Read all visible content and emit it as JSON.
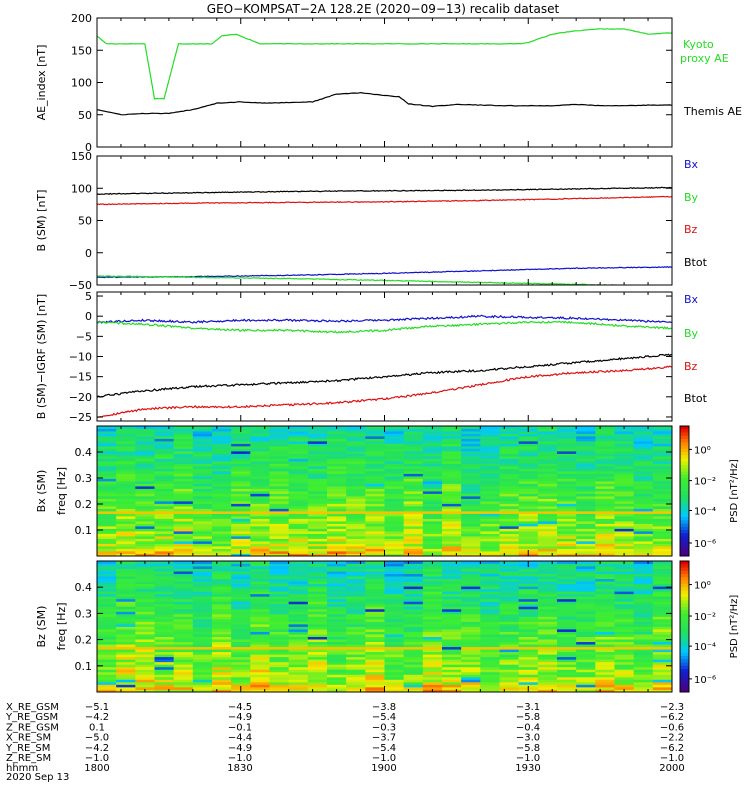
{
  "title": "GEO−KOMPSAT−2A 128.2E (2020−09−13) recalib dataset",
  "colors": {
    "green": "#22dd22",
    "black": "#000000",
    "blue": "#1111cc",
    "red": "#dd1111"
  },
  "chart_data": [
    {
      "type": "line",
      "ylabel": "AE_index [nT]",
      "ylim": [
        0,
        200
      ],
      "yticks": [
        "0",
        "50",
        "100",
        "150",
        "200"
      ],
      "series": [
        {
          "name": "Kyoto proxy AE",
          "color": "#22dd22",
          "x": [
            0,
            2,
            4,
            10,
            12,
            14,
            17,
            19,
            24,
            26,
            29,
            34,
            40,
            50,
            60,
            65,
            70,
            80,
            88,
            90,
            95,
            100,
            105,
            110,
            115,
            120
          ],
          "values": [
            172,
            160,
            160,
            160,
            75,
            75,
            160,
            160,
            160,
            172,
            175,
            160,
            160,
            160,
            160,
            160,
            160,
            160,
            160,
            162,
            175,
            180,
            183,
            183,
            175,
            177
          ]
        },
        {
          "name": "Themis AE",
          "color": "#000000",
          "x": [
            0,
            5,
            10,
            15,
            20,
            25,
            30,
            35,
            40,
            45,
            50,
            55,
            60,
            63,
            65,
            70,
            75,
            80,
            85,
            90,
            95,
            100,
            105,
            110,
            115,
            120
          ],
          "values": [
            58,
            50,
            52,
            52,
            58,
            68,
            70,
            68,
            69,
            70,
            82,
            84,
            80,
            78,
            67,
            63,
            66,
            65,
            64,
            64,
            64,
            66,
            64,
            64,
            65,
            65
          ]
        }
      ]
    },
    {
      "type": "line",
      "ylabel": "B (SM) [nT]",
      "ylim": [
        -50,
        150
      ],
      "yticks": [
        "−50",
        "0",
        "50",
        "100",
        "150"
      ],
      "series": [
        {
          "name": "Bx",
          "color": "#1111cc",
          "x": [
            0,
            20,
            40,
            60,
            80,
            100,
            120
          ],
          "values": [
            -38,
            -37,
            -35,
            -32,
            -28,
            -24,
            -22
          ]
        },
        {
          "name": "By",
          "color": "#22dd22",
          "x": [
            0,
            20,
            40,
            60,
            80,
            100,
            120
          ],
          "values": [
            -36,
            -38,
            -40,
            -43,
            -46,
            -49,
            -52
          ]
        },
        {
          "name": "Bz",
          "color": "#dd1111",
          "x": [
            0,
            20,
            40,
            60,
            80,
            100,
            120
          ],
          "values": [
            75,
            77,
            78,
            79,
            81,
            84,
            87
          ]
        },
        {
          "name": "Btot",
          "color": "#000000",
          "x": [
            0,
            20,
            40,
            60,
            80,
            100,
            120
          ],
          "values": [
            91,
            93,
            95,
            96,
            97,
            99,
            101
          ]
        }
      ]
    },
    {
      "type": "line",
      "ylabel": "B (SM)−IGRF (SM) [nT]",
      "ylim": [
        -26,
        6
      ],
      "yticks": [
        "−25",
        "−20",
        "−15",
        "−10",
        "−5",
        "0",
        "5"
      ],
      "series": [
        {
          "name": "Bx",
          "color": "#1111cc",
          "x": [
            0,
            10,
            20,
            30,
            40,
            50,
            60,
            70,
            80,
            90,
            100,
            110,
            120
          ],
          "values": [
            -1.5,
            -1,
            -1.5,
            -1,
            -1,
            -1.2,
            -1,
            -0.5,
            0,
            -0.3,
            -0.5,
            -1,
            -1.5
          ]
        },
        {
          "name": "By",
          "color": "#22dd22",
          "x": [
            0,
            10,
            20,
            30,
            40,
            50,
            60,
            70,
            80,
            90,
            100,
            110,
            120
          ],
          "values": [
            -1.5,
            -2,
            -3,
            -3.5,
            -3.5,
            -4,
            -3.5,
            -2.5,
            -2,
            -1.5,
            -1.5,
            -2.5,
            -3
          ]
        },
        {
          "name": "Btot",
          "color": "#000000",
          "x": [
            0,
            10,
            20,
            30,
            40,
            50,
            60,
            70,
            80,
            90,
            100,
            110,
            120
          ],
          "values": [
            -20,
            -18.5,
            -17.5,
            -17,
            -16.5,
            -16,
            -15,
            -14,
            -13.5,
            -12.5,
            -11.5,
            -10.5,
            -9.5
          ]
        },
        {
          "name": "Bz",
          "color": "#dd1111",
          "x": [
            0,
            10,
            20,
            30,
            40,
            50,
            60,
            70,
            80,
            90,
            100,
            110,
            120
          ],
          "values": [
            -25,
            -23,
            -22.5,
            -22.5,
            -22,
            -21.5,
            -20.5,
            -19,
            -17,
            -15,
            -14,
            -13.5,
            -12.5
          ]
        }
      ]
    },
    {
      "type": "heatmap",
      "ylabel": "Bx (SM) freq [Hz]",
      "ylim": [
        0,
        0.5
      ],
      "yticks": [
        "0.1",
        "0.2",
        "0.3",
        "0.4"
      ],
      "colorbar_label": "PSD [nT²/Hz]",
      "colorbar_ticks": [
        "10⁰",
        "10⁻²",
        "10⁻⁴",
        "10⁻⁶"
      ]
    },
    {
      "type": "heatmap",
      "ylabel": "Bz (SM) freq [Hz]",
      "ylim": [
        0,
        0.5
      ],
      "yticks": [
        "0.1",
        "0.2",
        "0.3",
        "0.4"
      ],
      "colorbar_label": "PSD [nT²/Hz]",
      "colorbar_ticks": [
        "10⁰",
        "10⁻²",
        "10⁻⁴",
        "10⁻⁶"
      ]
    }
  ],
  "ephemeris": {
    "rows": [
      {
        "label": "X_RE_GSM",
        "values": [
          "−5.1",
          "−4.5",
          "−3.8",
          "−3.1",
          "−2.3"
        ]
      },
      {
        "label": "Y_RE_GSM",
        "values": [
          "−4.2",
          "−4.9",
          "−5.4",
          "−5.8",
          "−6.2"
        ]
      },
      {
        "label": "Z_RE_GSM",
        "values": [
          "0.1",
          "−0.1",
          "−0.3",
          "−0.4",
          "−0.6"
        ]
      },
      {
        "label": "X_RE_SM",
        "values": [
          "−5.0",
          "−4.4",
          "−3.7",
          "−3.0",
          "−2.2"
        ]
      },
      {
        "label": "Y_RE_SM",
        "values": [
          "−4.2",
          "−4.9",
          "−5.4",
          "−5.8",
          "−6.2"
        ]
      },
      {
        "label": "Z_RE_SM",
        "values": [
          "−1.0",
          "−1.0",
          "−1.0",
          "−1.0",
          "−1.0"
        ]
      },
      {
        "label": "hhmm",
        "values": [
          "1800",
          "1830",
          "1900",
          "1930",
          "2000"
        ]
      }
    ],
    "date": "2020 Sep 13"
  }
}
